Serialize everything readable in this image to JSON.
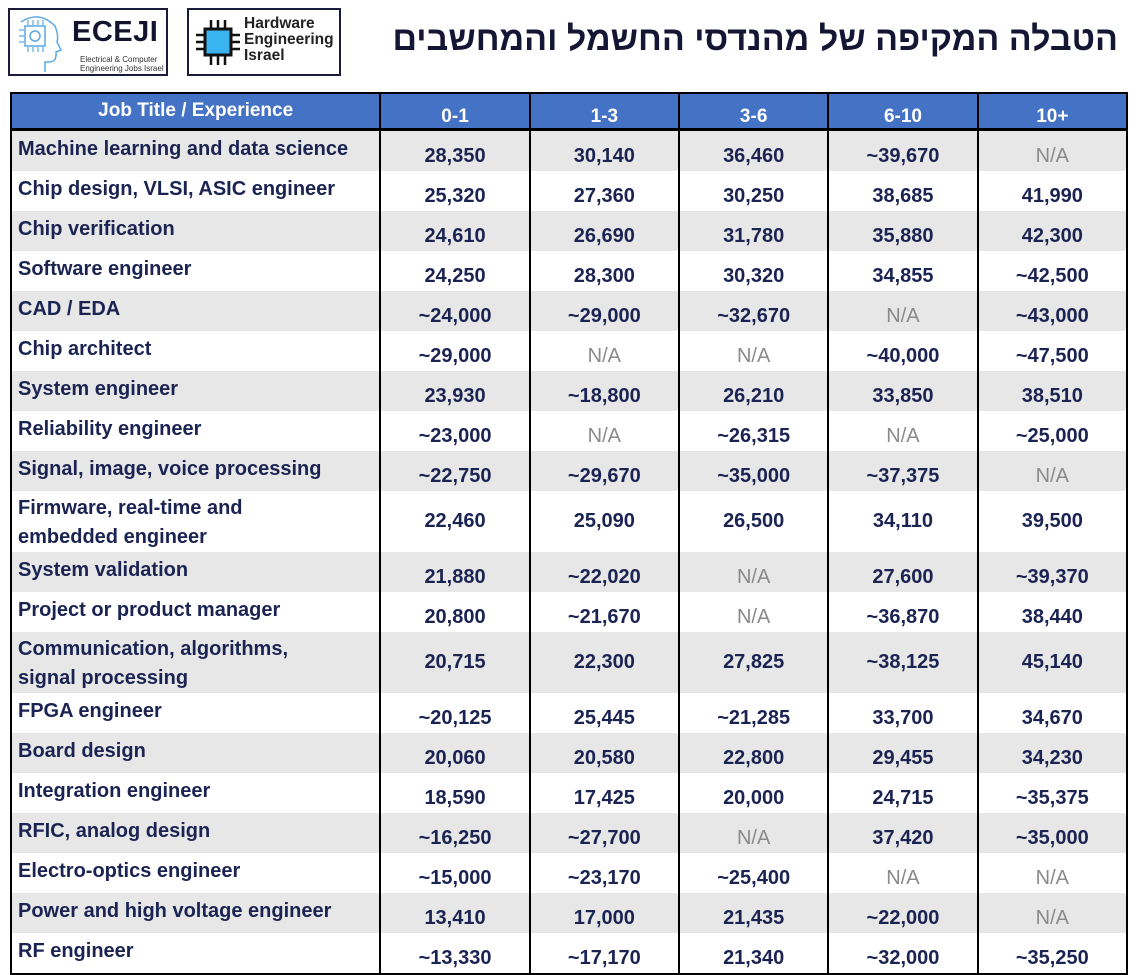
{
  "header": {
    "title": "הטבלה המקיפה של מהנדסי החשמל והמחשבים",
    "logo_eceji": {
      "name": "ECEJI",
      "subtitle_line1": "Electrical & Computer",
      "subtitle_line2": "Engineering Jobs Israel"
    },
    "logo_hw": {
      "line1": "Hardware",
      "line2": "Engineering",
      "line3": "Israel"
    }
  },
  "colors": {
    "header_bg": "#4472c4",
    "row_alt": "#e7e7e7",
    "text": "#1b2352",
    "na": "#8a8a8a"
  },
  "table": {
    "columns": [
      "Job Title / Experience",
      "0-1",
      "1-3",
      "3-6",
      "6-10",
      "10+"
    ],
    "rows": [
      {
        "title": "Machine learning and data science",
        "values": [
          "28,350",
          "30,140",
          "36,460",
          "~39,670",
          "N/A"
        ]
      },
      {
        "title": "Chip design, VLSI, ASIC engineer",
        "values": [
          "25,320",
          "27,360",
          "30,250",
          "38,685",
          "41,990"
        ]
      },
      {
        "title": "Chip verification",
        "values": [
          "24,610",
          "26,690",
          "31,780",
          "35,880",
          "42,300"
        ]
      },
      {
        "title": "Software engineer",
        "values": [
          "24,250",
          "28,300",
          "30,320",
          "34,855",
          "~42,500"
        ]
      },
      {
        "title": "CAD / EDA",
        "values": [
          "~24,000",
          "~29,000",
          "~32,670",
          "N/A",
          "~43,000"
        ]
      },
      {
        "title": "Chip architect",
        "values": [
          "~29,000",
          "N/A",
          "N/A",
          "~40,000",
          "~47,500"
        ]
      },
      {
        "title": "System engineer",
        "values": [
          "23,930",
          "~18,800",
          "26,210",
          "33,850",
          "38,510"
        ]
      },
      {
        "title": "Reliability engineer",
        "values": [
          "~23,000",
          "N/A",
          "~26,315",
          "N/A",
          "~25,000"
        ]
      },
      {
        "title": "Signal, image, voice processing",
        "values": [
          "~22,750",
          "~29,670",
          "~35,000",
          "~37,375",
          "N/A"
        ]
      },
      {
        "title_line1": "Firmware, real-time and",
        "title_line2": "embedded engineer",
        "values": [
          "22,460",
          "25,090",
          "26,500",
          "34,110",
          "39,500"
        ]
      },
      {
        "title": "System validation",
        "values": [
          "21,880",
          "~22,020",
          "N/A",
          "27,600",
          "~39,370"
        ]
      },
      {
        "title": "Project or product manager",
        "values": [
          "20,800",
          "~21,670",
          "N/A",
          "~36,870",
          "38,440"
        ]
      },
      {
        "title_line1": "Communication, algorithms,",
        "title_line2": "signal processing",
        "values": [
          "20,715",
          "22,300",
          "27,825",
          "~38,125",
          "45,140"
        ]
      },
      {
        "title": "FPGA engineer",
        "values": [
          "~20,125",
          "25,445",
          "~21,285",
          "33,700",
          "34,670"
        ]
      },
      {
        "title": "Board design",
        "values": [
          "20,060",
          "20,580",
          "22,800",
          "29,455",
          "34,230"
        ]
      },
      {
        "title": "Integration engineer",
        "values": [
          "18,590",
          "17,425",
          "20,000",
          "24,715",
          "~35,375"
        ]
      },
      {
        "title": "RFIC, analog design",
        "values": [
          "~16,250",
          "~27,700",
          "N/A",
          "37,420",
          "~35,000"
        ]
      },
      {
        "title": "Electro-optics engineer",
        "values": [
          "~15,000",
          "~23,170",
          "~25,400",
          "N/A",
          "N/A"
        ]
      },
      {
        "title": "Power and high voltage engineer",
        "values": [
          "13,410",
          "17,000",
          "21,435",
          "~22,000",
          "N/A"
        ]
      },
      {
        "title": "RF engineer",
        "values": [
          "~13,330",
          "~17,170",
          "21,340",
          "~32,000",
          "~35,250"
        ]
      }
    ]
  }
}
